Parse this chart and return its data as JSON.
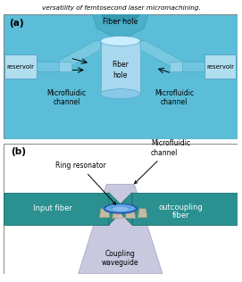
{
  "title_text": "versatility of femtosecond laser micromachining.",
  "panel_a_label": "(a)",
  "panel_b_label": "(b)",
  "panel_a_bg": "#5bbdd8",
  "teal_fiber_color": "#2a8f8f",
  "teal_fiber_color2": "#3aafaf",
  "waveguide_color": "#c8c8e0",
  "figsize": [
    2.71,
    3.16
  ],
  "dpi": 100
}
